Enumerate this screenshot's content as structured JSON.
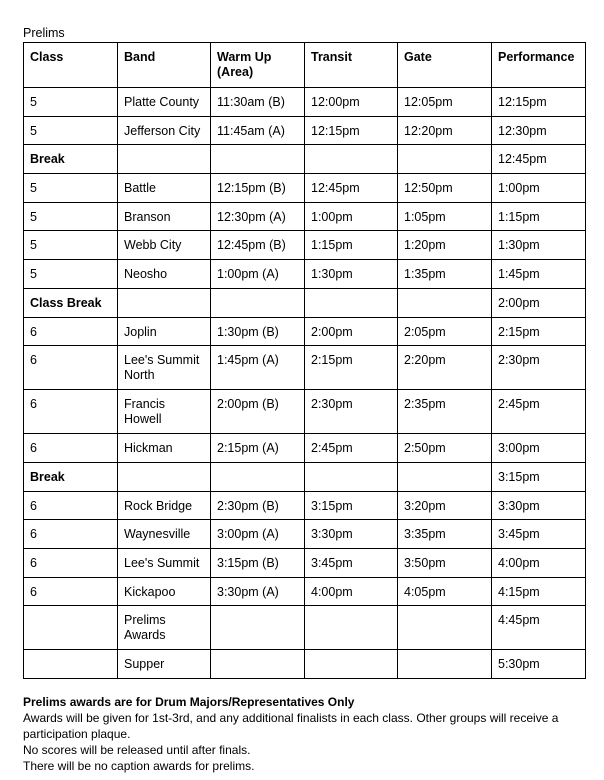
{
  "title": "Prelims",
  "columns": [
    "Class",
    "Band",
    "Warm Up (Area)",
    "Transit",
    "Gate",
    "Performance"
  ],
  "rows": [
    {
      "cells": [
        "5",
        "Platte County",
        "11:30am (B)",
        "12:00pm",
        "12:05pm",
        "12:15pm"
      ]
    },
    {
      "cells": [
        "5",
        "Jefferson City",
        "11:45am (A)",
        "12:15pm",
        "12:20pm",
        "12:30pm"
      ]
    },
    {
      "cells": [
        "Break",
        "",
        "",
        "",
        "",
        "12:45pm"
      ],
      "break": true
    },
    {
      "cells": [
        "5",
        "Battle",
        "12:15pm (B)",
        "12:45pm",
        "12:50pm",
        "1:00pm"
      ]
    },
    {
      "cells": [
        "5",
        "Branson",
        "12:30pm (A)",
        "1:00pm",
        "1:05pm",
        "1:15pm"
      ]
    },
    {
      "cells": [
        "5",
        "Webb City",
        "12:45pm (B)",
        "1:15pm",
        "1:20pm",
        "1:30pm"
      ]
    },
    {
      "cells": [
        "5",
        "Neosho",
        "1:00pm (A)",
        "1:30pm",
        "1:35pm",
        "1:45pm"
      ]
    },
    {
      "cells": [
        "Class Break",
        "",
        "",
        "",
        "",
        "2:00pm"
      ],
      "break": true
    },
    {
      "cells": [
        "6",
        "Joplin",
        "1:30pm (B)",
        "2:00pm",
        "2:05pm",
        "2:15pm"
      ]
    },
    {
      "cells": [
        "6",
        "Lee's Summit North",
        "1:45pm (A)",
        "2:15pm",
        "2:20pm",
        "2:30pm"
      ],
      "tall": true
    },
    {
      "cells": [
        "6",
        "Francis Howell",
        "2:00pm (B)",
        "2:30pm",
        "2:35pm",
        "2:45pm"
      ],
      "tall": true
    },
    {
      "cells": [
        "6",
        "Hickman",
        "2:15pm (A)",
        "2:45pm",
        "2:50pm",
        "3:00pm"
      ]
    },
    {
      "cells": [
        "Break",
        "",
        "",
        "",
        "",
        "3:15pm"
      ],
      "break": true
    },
    {
      "cells": [
        "6",
        "Rock Bridge",
        "2:30pm (B)",
        "3:15pm",
        "3:20pm",
        "3:30pm"
      ]
    },
    {
      "cells": [
        "6",
        "Waynesville",
        "3:00pm (A)",
        "3:30pm",
        "3:35pm",
        "3:45pm"
      ]
    },
    {
      "cells": [
        "6",
        "Lee's Summit",
        "3:15pm (B)",
        "3:45pm",
        "3:50pm",
        "4:00pm"
      ]
    },
    {
      "cells": [
        "6",
        "Kickapoo",
        "3:30pm (A)",
        "4:00pm",
        "4:05pm",
        "4:15pm"
      ]
    },
    {
      "cells": [
        "",
        "Prelims Awards",
        "",
        "",
        "",
        "4:45pm"
      ],
      "tall": true
    },
    {
      "cells": [
        "",
        "Supper",
        "",
        "",
        "",
        "5:30pm"
      ]
    }
  ],
  "notes": {
    "heading": "Prelims awards are for Drum Majors/Representatives Only",
    "lines": [
      "Awards will be given for 1st-3rd, and any additional finalists in each class. Other groups will receive a participation plaque.",
      "No scores will be released until after finals.",
      "There will be no caption awards for prelims."
    ]
  }
}
